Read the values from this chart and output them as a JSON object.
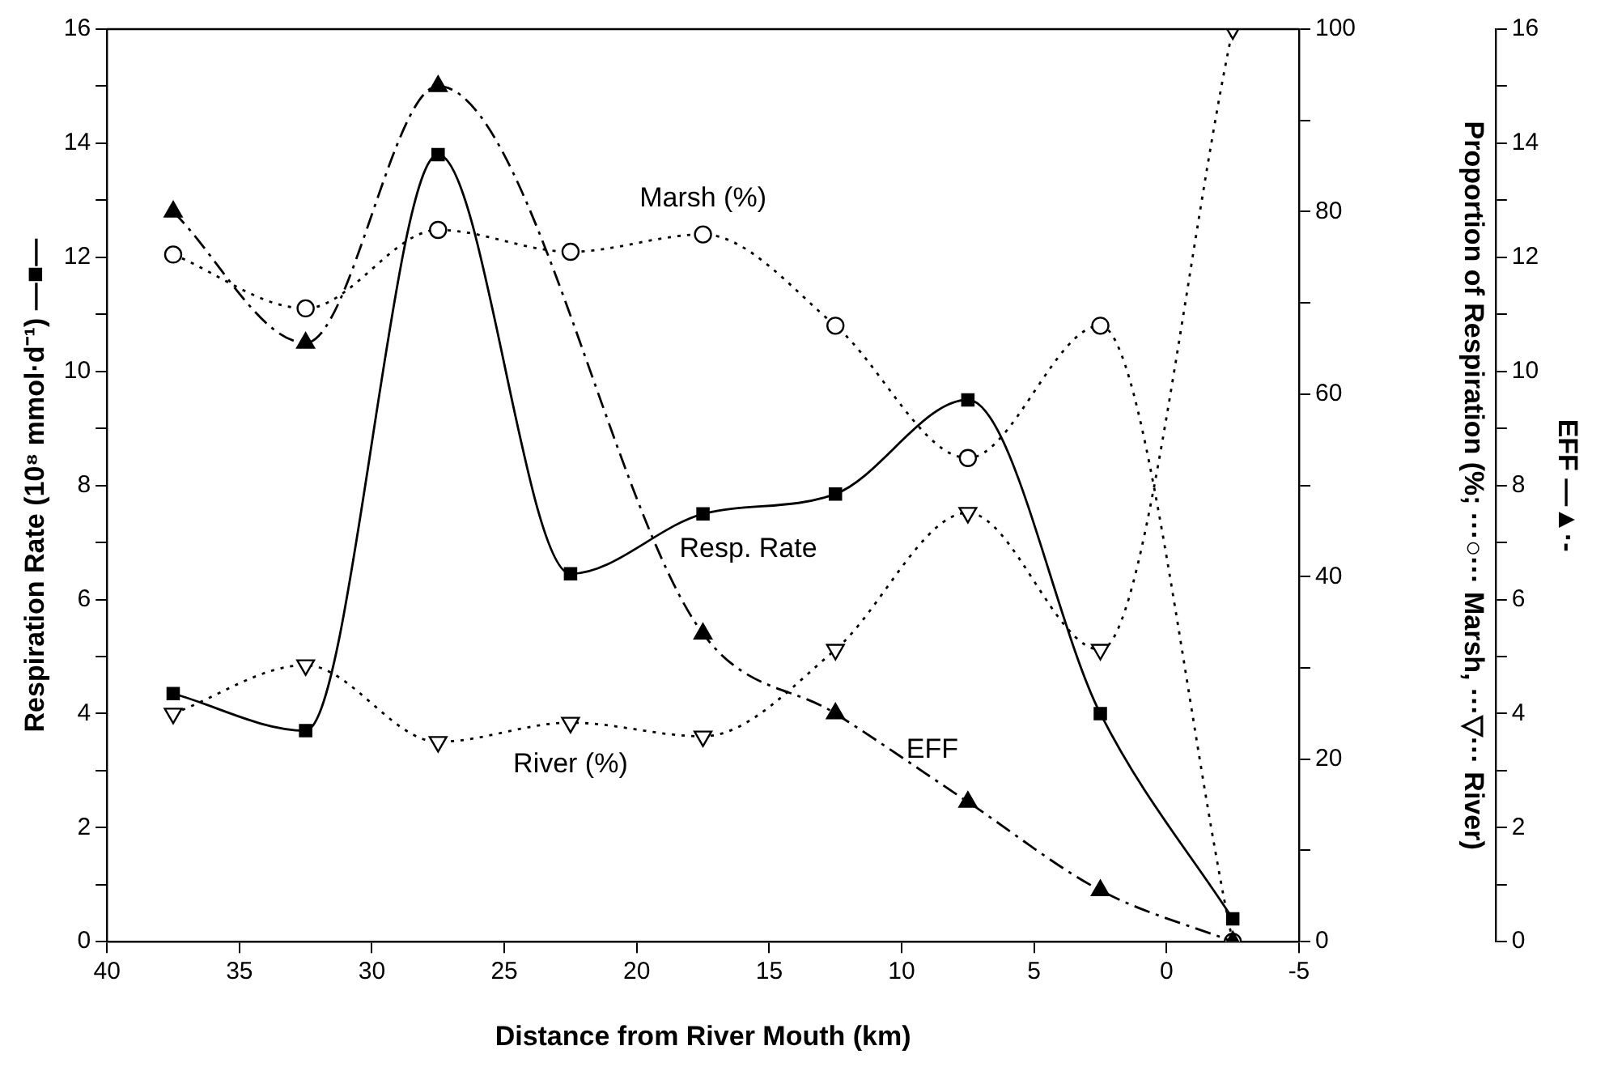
{
  "chart_data": {
    "type": "line",
    "xlabel": "Distance from River Mouth (km)",
    "ylabel": "Respiration Rate (10⁸ mmol·d⁻¹) —■—",
    "y2label": "Proportion of Respiration (%; ···○··· Marsh, ···▽··· River)",
    "y3label": "EFF —▲·-",
    "x": [
      37.5,
      32.5,
      27.5,
      22.5,
      17.5,
      12.5,
      7.5,
      2.5,
      -2.5
    ],
    "xlim": [
      40,
      -5
    ],
    "xticks": [
      40,
      35,
      30,
      25,
      20,
      15,
      10,
      5,
      0,
      -5
    ],
    "ylim": [
      0,
      16
    ],
    "yticks": [
      0,
      {
        "value": 1,
        "label": null
      },
      2,
      {
        "value": 3,
        "label": null
      },
      4,
      {
        "value": 5,
        "label": null
      },
      6,
      {
        "value": 7,
        "label": null
      },
      8,
      {
        "value": 9,
        "label": null
      },
      10,
      {
        "value": 11,
        "label": null
      },
      12,
      {
        "value": 13,
        "label": null
      },
      14,
      {
        "value": 15,
        "label": null
      },
      16
    ],
    "y2lim": [
      0,
      100
    ],
    "y2ticks": [
      0,
      {
        "value": 10,
        "label": null
      },
      20,
      {
        "value": 30,
        "label": null
      },
      40,
      {
        "value": 50,
        "label": null
      },
      60,
      {
        "value": 70,
        "label": null
      },
      80,
      {
        "value": 90,
        "label": null
      },
      100
    ],
    "y3lim": [
      0,
      16
    ],
    "y3ticks": [
      0,
      {
        "value": 1,
        "label": null
      },
      2,
      {
        "value": 3,
        "label": null
      },
      4,
      {
        "value": 5,
        "label": null
      },
      6,
      {
        "value": 7,
        "label": null
      },
      8,
      {
        "value": 9,
        "label": null
      },
      10,
      {
        "value": 11,
        "label": null
      },
      12,
      {
        "value": 13,
        "label": null
      },
      14,
      {
        "value": 15,
        "label": null
      },
      16
    ],
    "grid": false,
    "legend": false,
    "series": [
      {
        "name": "Resp. Rate",
        "color": "#000000",
        "marker": "square",
        "line_style": "solid",
        "values": [
          4.35,
          3.7,
          13.8,
          6.45,
          7.5,
          7.85,
          9.5,
          4.0,
          0.4
        ]
      },
      {
        "name": "EFF",
        "color": "#000000",
        "marker": "triangle",
        "line_style": "dashdot",
        "axis": "y3",
        "values": [
          12.8,
          10.5,
          15.0,
          null,
          5.4,
          4.0,
          2.45,
          0.9,
          0
        ]
      },
      {
        "name": "Marsh (%)",
        "color": "#000000",
        "marker": "circle",
        "line_style": "dotted",
        "axis": "y2",
        "values": [
          75.3,
          69.4,
          78,
          75.6,
          77.5,
          67.5,
          53,
          67.5,
          0
        ]
      },
      {
        "name": "River (%)",
        "color": "#000000",
        "marker": "triangle-down",
        "line_style": "dotted",
        "axis": "y2",
        "values": [
          25,
          30.3,
          21.9,
          24,
          22.5,
          32,
          47,
          32,
          100
        ]
      }
    ]
  }
}
